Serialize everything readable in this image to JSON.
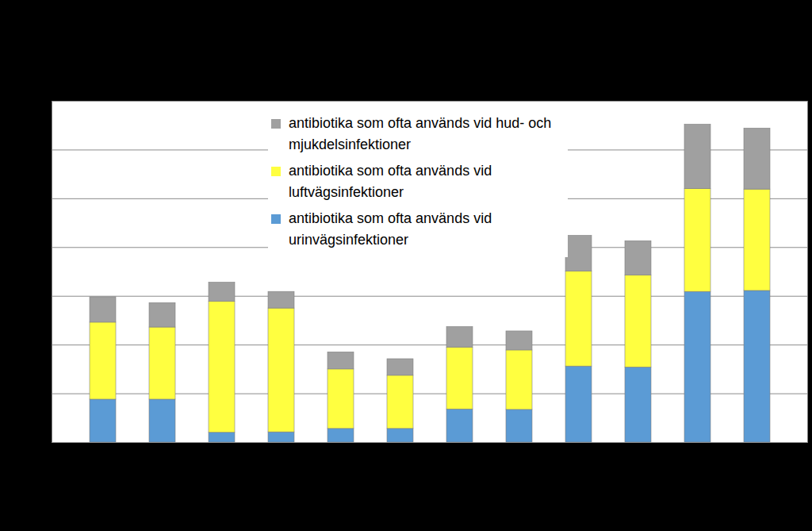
{
  "chart_data": {
    "type": "bar",
    "stacked": true,
    "categories": [
      null,
      null,
      null,
      null,
      null,
      null,
      null,
      null,
      null,
      null,
      null,
      null
    ],
    "series": [
      {
        "name": "antibiotika som ofta används vid urinvägsinfektioner",
        "color": "#5b9bd5",
        "values": [
          0.88,
          0.88,
          0.2,
          0.21,
          0.28,
          0.28,
          0.68,
          0.67,
          1.56,
          1.54,
          3.09,
          3.11
        ]
      },
      {
        "name": "antibiotika som ofta används vid luftvägsinfektioner",
        "color": "#ffff40",
        "values": [
          1.58,
          1.48,
          2.69,
          2.54,
          1.22,
          1.09,
          1.27,
          1.22,
          1.95,
          1.89,
          2.11,
          2.08
        ]
      },
      {
        "name": "antibiotika som ofta används vid hud- och mjukdelsinfektioner",
        "color": "#a0a0a0",
        "values": [
          0.52,
          0.5,
          0.39,
          0.34,
          0.35,
          0.34,
          0.42,
          0.39,
          0.73,
          0.7,
          1.32,
          1.25
        ]
      }
    ],
    "ylim": [
      0,
      7
    ],
    "yticks": [
      0,
      1,
      2,
      3,
      4,
      5,
      6,
      7
    ],
    "grid": true,
    "legend": "top",
    "tick_labels": false
  }
}
